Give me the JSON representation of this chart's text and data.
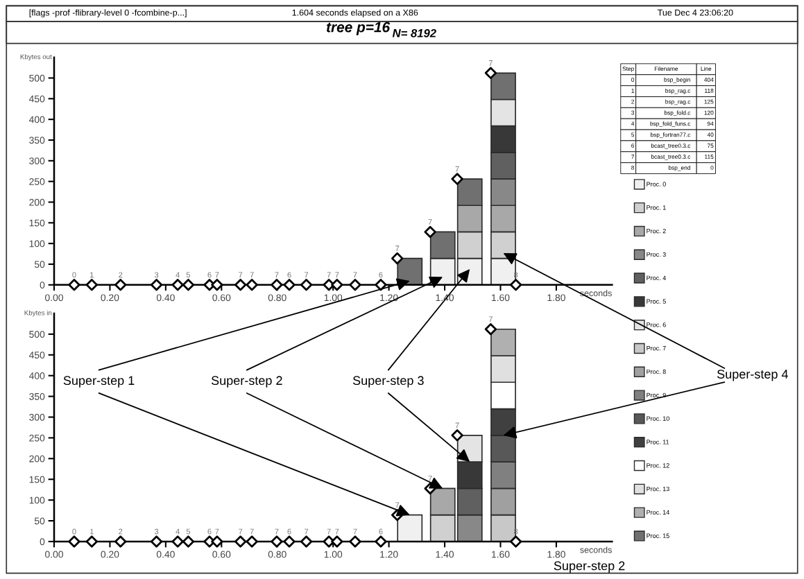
{
  "chart_data": [
    {
      "type": "bar",
      "title": "tree p=16",
      "subtitle": "N= 8192",
      "ylabel": "Kbytes out",
      "xlabel": "seconds",
      "stacked": true,
      "legend": "right",
      "grid": false,
      "annotations": [
        "[flags -prof -flibrary-level 0 -fcombine-p...]",
        "1.604 seconds elapsed on a X86",
        "Tue Dec 4 23:06:20",
        "Step",
        "Filename",
        "Line",
        "0",
        "bsp_begin",
        "404",
        "1",
        "bsp_rag.c",
        "118",
        "2",
        "bsp_rag.c",
        "125",
        "3",
        "bsp_fold.c",
        "120",
        "4",
        "bsp_fold_funs.c",
        "94",
        "5",
        "bsp_fortran77.c",
        "40",
        "6",
        "bcast_tree0.3.c",
        "75",
        "7",
        "bcast_tree0.3.c",
        "115",
        "8",
        "bsp_end",
        "0",
        {
          "text": "0",
          "x": 0.072,
          "y": 0
        },
        {
          "text": "1",
          "x": 0.135,
          "y": 0
        },
        {
          "text": "2",
          "x": 0.238,
          "y": 0
        },
        {
          "text": "3",
          "x": 0.367,
          "y": 0
        },
        {
          "text": "4",
          "x": 0.443,
          "y": 0
        },
        {
          "text": "5",
          "x": 0.481,
          "y": 0
        },
        {
          "text": "6",
          "x": 0.557,
          "y": 0
        },
        {
          "text": "7",
          "x": 0.584,
          "y": 0
        },
        {
          "text": "7",
          "x": 0.668,
          "y": 0
        },
        {
          "text": "7",
          "x": 0.709,
          "y": 0
        },
        {
          "text": "7",
          "x": 0.798,
          "y": 0
        },
        {
          "text": "6",
          "x": 0.843,
          "y": 0
        },
        {
          "text": "7",
          "x": 0.904,
          "y": 0
        },
        {
          "text": "7",
          "x": 0.985,
          "y": 0
        },
        {
          "text": "7",
          "x": 1.014,
          "y": 0
        },
        {
          "text": "7",
          "x": 1.079,
          "y": 0
        },
        {
          "text": "6",
          "x": 1.171,
          "y": 0
        },
        {
          "text": "7",
          "x": 1.23,
          "y": 64
        },
        {
          "text": "7",
          "x": 1.348,
          "y": 128
        },
        {
          "text": "7",
          "x": 1.445,
          "y": 256
        },
        {
          "text": "7",
          "x": 1.565,
          "y": 512
        },
        {
          "text": "8",
          "x": 1.655,
          "y": 0
        }
      ],
      "x": [
        1.275,
        1.393,
        1.49,
        1.61
      ],
      "xlim": [
        0,
        2.0
      ],
      "ylim": [
        0,
        550
      ],
      "xticks": [
        {
          "value": 0,
          "label": "0.00"
        },
        {
          "value": 0.2,
          "label": "0.20"
        },
        {
          "value": 0.4,
          "label": "0.40"
        },
        {
          "value": 0.6,
          "label": "0.60"
        },
        {
          "value": 0.8,
          "label": "0.80"
        },
        {
          "value": 1.0,
          "label": "1.00"
        },
        {
          "value": 1.2,
          "label": "1.20"
        },
        {
          "value": 1.4,
          "label": "1.40"
        },
        {
          "value": 1.6,
          "label": "1.60"
        },
        {
          "value": 1.8,
          "label": "1.80"
        }
      ],
      "yticks": [
        0,
        50,
        100,
        150,
        200,
        250,
        300,
        350,
        400,
        450,
        500
      ],
      "series": [
        {
          "name": "Proc. 0",
          "color": "#f0f0f0",
          "values": [
            null,
            64,
            64,
            64
          ]
        },
        {
          "name": "Proc. 1",
          "color": "#d0d0d0",
          "values": [
            null,
            null,
            64,
            64
          ]
        },
        {
          "name": "Proc. 2",
          "color": "#a8a8a8",
          "values": [
            null,
            null,
            64,
            64
          ]
        },
        {
          "name": "Proc. 3",
          "color": "#888888",
          "values": [
            null,
            null,
            null,
            64
          ]
        },
        {
          "name": "Proc. 4",
          "color": "#606060",
          "values": [
            null,
            null,
            null,
            64
          ]
        },
        {
          "name": "Proc. 5",
          "color": "#383838",
          "values": [
            null,
            null,
            null,
            64
          ]
        },
        {
          "name": "Proc. 6",
          "color": "#e4e4e4",
          "values": [
            null,
            null,
            null,
            64
          ]
        },
        {
          "name": "Proc. 7",
          "color": "#c8c8c8",
          "values": [
            null,
            null,
            null,
            null
          ]
        },
        {
          "name": "Proc. 8",
          "color": "#a0a0a0",
          "values": [
            null,
            null,
            null,
            null
          ]
        },
        {
          "name": "Proc. 9",
          "color": "#808080",
          "values": [
            null,
            null,
            null,
            null
          ]
        },
        {
          "name": "Proc. 10",
          "color": "#585858",
          "values": [
            null,
            null,
            null,
            null
          ]
        },
        {
          "name": "Proc. 11",
          "color": "#404040",
          "values": [
            null,
            null,
            null,
            null
          ]
        },
        {
          "name": "Proc. 12",
          "color": "#ffffff",
          "values": [
            null,
            null,
            null,
            null
          ]
        },
        {
          "name": "Proc. 13",
          "color": "#e0e0e0",
          "values": [
            null,
            null,
            null,
            null
          ]
        },
        {
          "name": "Proc. 14",
          "color": "#b0b0b0",
          "values": [
            null,
            null,
            null,
            null
          ]
        },
        {
          "name": "Proc. 15",
          "color": "#707070",
          "values": [
            64,
            64,
            64,
            64
          ]
        },
        {
          "type": "scatter",
          "marker": "diamond",
          "color": "#000000",
          "x": [
            0.072,
            0.135,
            0.238,
            0.367,
            0.443,
            0.481,
            0.557,
            0.584,
            0.668,
            0.709,
            0.798,
            0.843,
            0.904,
            0.985,
            1.014,
            1.079,
            1.171,
            1.23,
            1.348,
            1.445,
            1.565,
            1.655
          ],
          "values": [
            0,
            0,
            0,
            0,
            0,
            0,
            0,
            0,
            0,
            0,
            0,
            0,
            0,
            0,
            0,
            0,
            0,
            64,
            128,
            256,
            512,
            0
          ]
        }
      ]
    },
    {
      "type": "bar",
      "ylabel": "Kbytes in",
      "xlabel": "seconds",
      "stacked": true,
      "grid": false,
      "annotations": [
        {
          "text": "Super-step 1",
          "x": 1.275,
          "y": 64
        },
        {
          "text": "Super-step 2",
          "x": 1.393,
          "y": 128
        },
        {
          "text": "Super-step 3",
          "x": 1.49,
          "y": 192
        },
        {
          "text": "Super-step 4",
          "x": 1.61,
          "y": 256
        },
        "Super-step 2",
        {
          "text": "0",
          "x": 0.072,
          "y": 0
        },
        {
          "text": "1",
          "x": 0.135,
          "y": 0
        },
        {
          "text": "2",
          "x": 0.238,
          "y": 0
        },
        {
          "text": "3",
          "x": 0.367,
          "y": 0
        },
        {
          "text": "4",
          "x": 0.443,
          "y": 0
        },
        {
          "text": "5",
          "x": 0.481,
          "y": 0
        },
        {
          "text": "6",
          "x": 0.557,
          "y": 0
        },
        {
          "text": "7",
          "x": 0.584,
          "y": 0
        },
        {
          "text": "7",
          "x": 0.668,
          "y": 0
        },
        {
          "text": "7",
          "x": 0.709,
          "y": 0
        },
        {
          "text": "7",
          "x": 0.798,
          "y": 0
        },
        {
          "text": "6",
          "x": 0.843,
          "y": 0
        },
        {
          "text": "7",
          "x": 0.904,
          "y": 0
        },
        {
          "text": "7",
          "x": 0.985,
          "y": 0
        },
        {
          "text": "7",
          "x": 1.014,
          "y": 0
        },
        {
          "text": "7",
          "x": 1.079,
          "y": 0
        },
        {
          "text": "6",
          "x": 1.171,
          "y": 0
        },
        {
          "text": "7",
          "x": 1.23,
          "y": 64
        },
        {
          "text": "7",
          "x": 1.348,
          "y": 128
        },
        {
          "text": "7",
          "x": 1.445,
          "y": 256
        },
        {
          "text": "7",
          "x": 1.565,
          "y": 512
        },
        {
          "text": "8",
          "x": 1.655,
          "y": 0
        }
      ],
      "x": [
        1.275,
        1.393,
        1.49,
        1.61
      ],
      "xlim": [
        0,
        2.0
      ],
      "ylim": [
        0,
        550
      ],
      "xticks": [
        {
          "value": 0,
          "label": "0.00"
        },
        {
          "value": 0.2,
          "label": "0.20"
        },
        {
          "value": 0.4,
          "label": "0.40"
        },
        {
          "value": 0.6,
          "label": "0.60"
        },
        {
          "value": 0.8,
          "label": "0.80"
        },
        {
          "value": 1.0,
          "label": "1.00"
        },
        {
          "value": 1.2,
          "label": "1.20"
        },
        {
          "value": 1.4,
          "label": "1.40"
        },
        {
          "value": 1.6,
          "label": "1.60"
        },
        {
          "value": 1.8,
          "label": "1.80"
        }
      ],
      "yticks": [
        0,
        50,
        100,
        150,
        200,
        250,
        300,
        350,
        400,
        450,
        500
      ],
      "series": [
        {
          "color": "#f0f0f0",
          "values": [
            64,
            null,
            null,
            null
          ]
        },
        {
          "color": "#d0d0d0",
          "values": [
            null,
            64,
            null,
            null
          ]
        },
        {
          "color": "#a8a8a8",
          "values": [
            null,
            64,
            null,
            null
          ]
        },
        {
          "color": "#888888",
          "values": [
            null,
            null,
            64,
            null
          ]
        },
        {
          "color": "#606060",
          "values": [
            null,
            null,
            64,
            null
          ]
        },
        {
          "color": "#383838",
          "values": [
            null,
            null,
            64,
            null
          ]
        },
        {
          "color": "#e4e4e4",
          "values": [
            null,
            null,
            64,
            null
          ]
        },
        {
          "color": "#c8c8c8",
          "values": [
            null,
            null,
            null,
            64
          ]
        },
        {
          "color": "#a0a0a0",
          "values": [
            null,
            null,
            null,
            64
          ]
        },
        {
          "color": "#808080",
          "values": [
            null,
            null,
            null,
            64
          ]
        },
        {
          "color": "#585858",
          "values": [
            null,
            null,
            null,
            64
          ]
        },
        {
          "color": "#404040",
          "values": [
            null,
            null,
            null,
            64
          ]
        },
        {
          "color": "#ffffff",
          "values": [
            null,
            null,
            null,
            64
          ]
        },
        {
          "color": "#e0e0e0",
          "values": [
            null,
            null,
            null,
            64
          ]
        },
        {
          "color": "#b0b0b0",
          "values": [
            null,
            null,
            null,
            64
          ]
        },
        {
          "type": "scatter",
          "marker": "diamond",
          "color": "#000000",
          "x": [
            0.072,
            0.135,
            0.238,
            0.367,
            0.443,
            0.481,
            0.557,
            0.584,
            0.668,
            0.709,
            0.798,
            0.843,
            0.904,
            0.985,
            1.014,
            1.079,
            1.171,
            1.23,
            1.348,
            1.445,
            1.565,
            1.655
          ],
          "values": [
            0,
            0,
            0,
            0,
            0,
            0,
            0,
            0,
            0,
            0,
            0,
            0,
            0,
            0,
            0,
            0,
            0,
            64,
            128,
            256,
            512,
            0
          ]
        }
      ]
    }
  ]
}
